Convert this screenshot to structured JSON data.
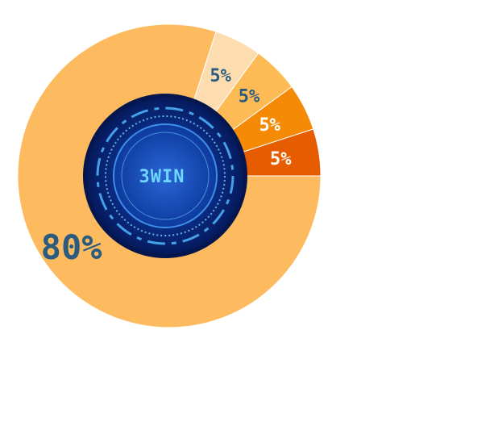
{
  "chart_data": {
    "type": "pie",
    "center_label": "3WIN",
    "slices": [
      {
        "label": "5%",
        "value": 5,
        "color": "#E65C00",
        "text_color": "#FFFFFF"
      },
      {
        "label": "5%",
        "value": 5,
        "color": "#F58A07",
        "text_color": "#FFFFFF"
      },
      {
        "label": "5%",
        "value": 5,
        "color": "#FDBA55",
        "text_color": "#2B5B7F"
      },
      {
        "label": "5%",
        "value": 5,
        "color": "#FDDDB0",
        "text_color": "#2B5B7F"
      },
      {
        "label": "80%",
        "value": 80,
        "color": "#FDBA5E",
        "text_color": "#2B5B7F"
      }
    ]
  }
}
